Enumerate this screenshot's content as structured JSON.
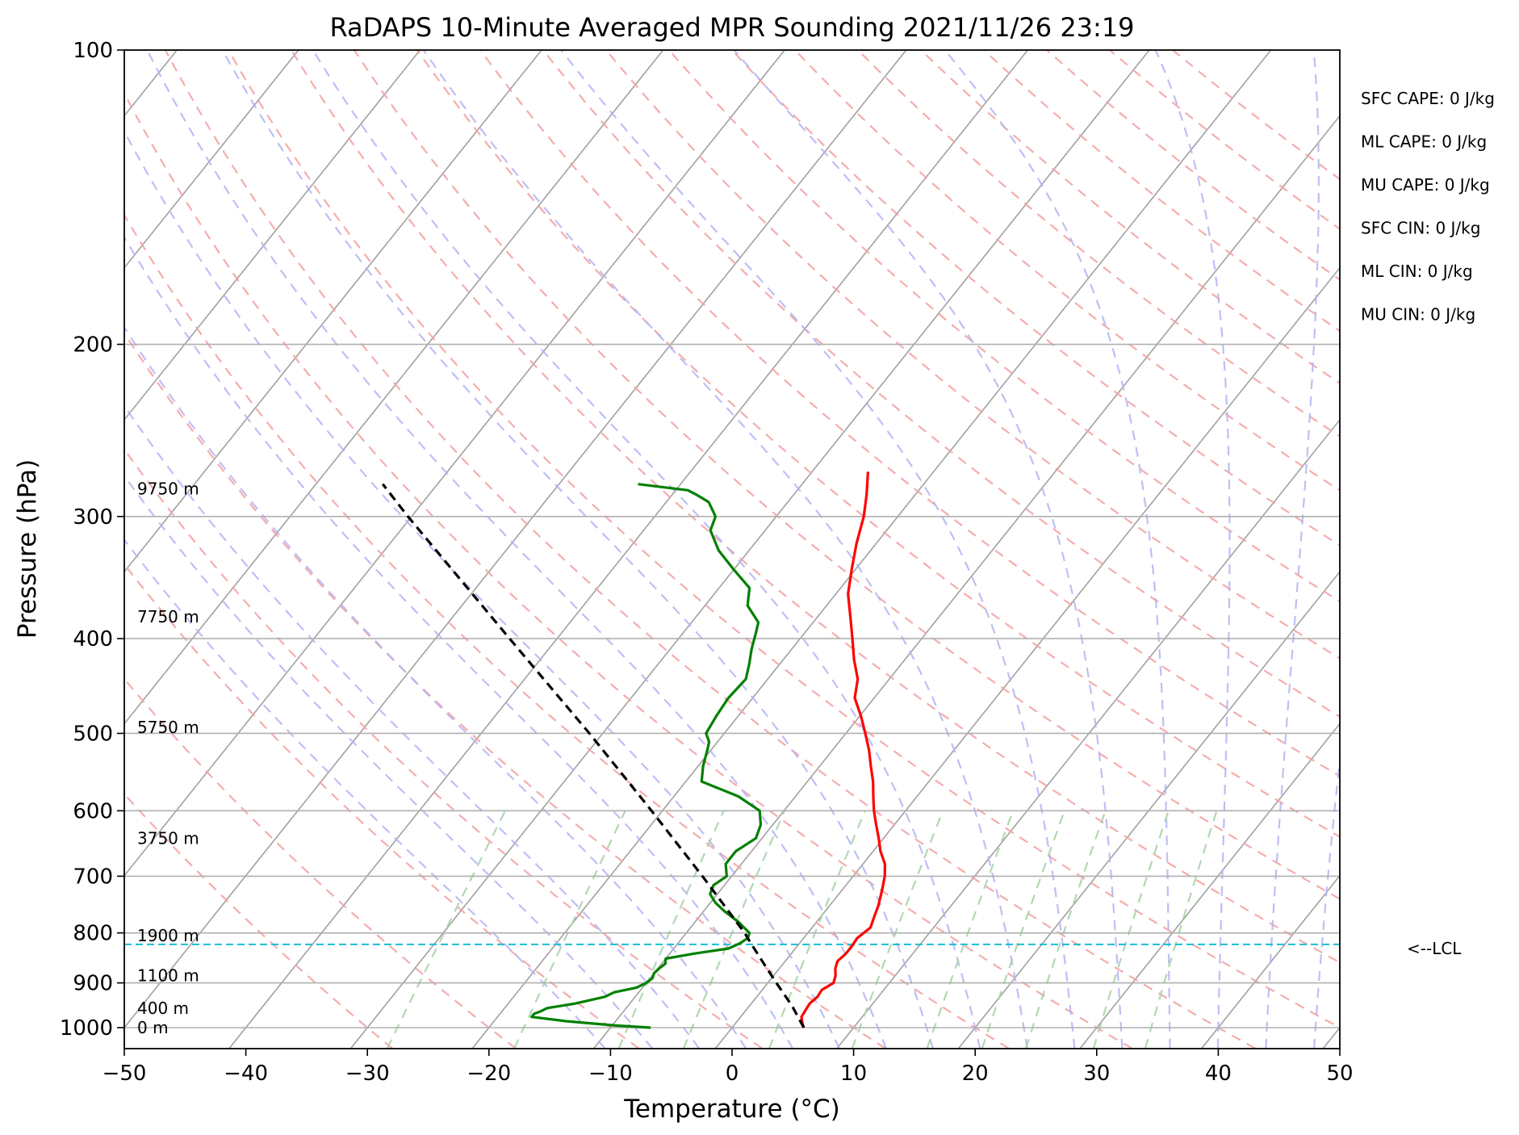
{
  "chart_data": {
    "type": "line",
    "title": "RaDAPS 10-Minute Averaged MPR Sounding 2021/11/26 23:19",
    "xlabel": "Temperature (°C)",
    "ylabel": "Pressure (hPa)",
    "xlim": [
      -50,
      50
    ],
    "ylim": [
      1050,
      100
    ],
    "y_scale": "log",
    "x_ticks": [
      -50,
      -40,
      -30,
      -20,
      -10,
      0,
      10,
      20,
      30,
      40,
      50
    ],
    "x_tick_labels": [
      "−50",
      "−40",
      "−30",
      "−20",
      "−10",
      "0",
      "10",
      "20",
      "30",
      "40",
      "50"
    ],
    "y_ticks": [
      1000,
      900,
      800,
      700,
      600,
      500,
      400,
      300,
      200,
      100
    ],
    "y_tick_labels": [
      "1000",
      "900",
      "800",
      "700",
      "600",
      "500",
      "400",
      "300",
      "200",
      "100"
    ],
    "grid": true,
    "reference_lines": {
      "dry_adiabats": {
        "color": "#f4a3a3",
        "style": "dashed"
      },
      "moist_adiabats": {
        "color": "#b3b3f5",
        "style": "dashed"
      },
      "mixing_ratio": {
        "color": "#a8d4a8",
        "style": "dashed"
      },
      "isotherms": {
        "color": "#a0a0a0",
        "style": "solid"
      }
    },
    "series": [
      {
        "role": "temperature",
        "color": "#ff0000",
        "points": [
          [
            1000,
            5.9
          ],
          [
            990,
            5.5
          ],
          [
            975,
            5.0
          ],
          [
            960,
            4.9
          ],
          [
            945,
            4.8
          ],
          [
            930,
            5.0
          ],
          [
            915,
            4.9
          ],
          [
            900,
            5.4
          ],
          [
            885,
            5.1
          ],
          [
            870,
            4.6
          ],
          [
            855,
            4.3
          ],
          [
            840,
            4.5
          ],
          [
            825,
            4.5
          ],
          [
            810,
            4.4
          ],
          [
            800,
            4.6
          ],
          [
            790,
            4.8
          ],
          [
            770,
            4.4
          ],
          [
            750,
            4.0
          ],
          [
            720,
            3.2
          ],
          [
            700,
            2.6
          ],
          [
            680,
            1.8
          ],
          [
            660,
            0.6
          ],
          [
            640,
            -0.4
          ],
          [
            620,
            -1.5
          ],
          [
            600,
            -2.6
          ],
          [
            580,
            -3.6
          ],
          [
            560,
            -4.6
          ],
          [
            540,
            -5.8
          ],
          [
            520,
            -7.0
          ],
          [
            500,
            -8.4
          ],
          [
            480,
            -9.9
          ],
          [
            460,
            -11.6
          ],
          [
            440,
            -12.6
          ],
          [
            420,
            -14.2
          ],
          [
            400,
            -15.7
          ],
          [
            380,
            -17.3
          ],
          [
            360,
            -19.0
          ],
          [
            340,
            -20.3
          ],
          [
            320,
            -21.6
          ],
          [
            300,
            -22.8
          ],
          [
            285,
            -24.0
          ],
          [
            270,
            -25.4
          ]
        ]
      },
      {
        "role": "dewpoint",
        "color": "#008000",
        "points": [
          [
            1000,
            -6.7
          ],
          [
            995,
            -9.7
          ],
          [
            985,
            -14.0
          ],
          [
            975,
            -17.2
          ],
          [
            968,
            -17.2
          ],
          [
            962,
            -16.8
          ],
          [
            955,
            -16.5
          ],
          [
            945,
            -14.5
          ],
          [
            930,
            -12.5
          ],
          [
            920,
            -12.0
          ],
          [
            910,
            -10.5
          ],
          [
            900,
            -10.0
          ],
          [
            890,
            -9.8
          ],
          [
            880,
            -10.0
          ],
          [
            870,
            -9.9
          ],
          [
            860,
            -9.7
          ],
          [
            850,
            -10.0
          ],
          [
            840,
            -8.0
          ],
          [
            830,
            -5.5
          ],
          [
            820,
            -4.9
          ],
          [
            810,
            -4.6
          ],
          [
            800,
            -4.8
          ],
          [
            790,
            -5.6
          ],
          [
            780,
            -6.4
          ],
          [
            760,
            -8.3
          ],
          [
            745,
            -9.6
          ],
          [
            730,
            -10.6
          ],
          [
            715,
            -10.9
          ],
          [
            700,
            -10.4
          ],
          [
            680,
            -11.3
          ],
          [
            660,
            -11.3
          ],
          [
            640,
            -10.5
          ],
          [
            620,
            -11.0
          ],
          [
            600,
            -12.0
          ],
          [
            580,
            -14.7
          ],
          [
            560,
            -18.7
          ],
          [
            540,
            -19.6
          ],
          [
            520,
            -20.3
          ],
          [
            510,
            -20.7
          ],
          [
            500,
            -21.5
          ],
          [
            480,
            -21.8
          ],
          [
            460,
            -22.0
          ],
          [
            440,
            -21.8
          ],
          [
            425,
            -22.5
          ],
          [
            410,
            -23.3
          ],
          [
            395,
            -24.0
          ],
          [
            385,
            -24.5
          ],
          [
            370,
            -26.5
          ],
          [
            355,
            -27.5
          ],
          [
            340,
            -30.0
          ],
          [
            325,
            -32.5
          ],
          [
            310,
            -34.5
          ],
          [
            300,
            -35.0
          ],
          [
            290,
            -36.5
          ],
          [
            285,
            -38.0
          ],
          [
            282,
            -39.0
          ],
          [
            278,
            -43.5
          ]
        ]
      },
      {
        "role": "parcel",
        "color": "#000000",
        "style": "dashed",
        "points": [
          [
            1000,
            5.9
          ],
          [
            950,
            3.5
          ],
          [
            900,
            0.7
          ],
          [
            860,
            -1.6
          ],
          [
            820,
            -4.0
          ],
          [
            800,
            -5.2
          ],
          [
            700,
            -12.4
          ],
          [
            600,
            -20.9
          ],
          [
            500,
            -31.1
          ],
          [
            400,
            -43.9
          ],
          [
            300,
            -60.3
          ],
          [
            278,
            -64.5
          ]
        ]
      }
    ],
    "lcl": {
      "pressure": 822,
      "label": "<--LCL",
      "color": "#17becf"
    },
    "height_labels": [
      {
        "pressure": 1000,
        "label": "0 m"
      },
      {
        "pressure": 955,
        "label": "400 m"
      },
      {
        "pressure": 885,
        "label": "1100 m"
      },
      {
        "pressure": 805,
        "label": "1900 m"
      },
      {
        "pressure": 640,
        "label": "3750 m"
      },
      {
        "pressure": 493,
        "label": "5750 m"
      },
      {
        "pressure": 380,
        "label": "7750 m"
      },
      {
        "pressure": 281,
        "label": "9750 m"
      }
    ],
    "indices": [
      "SFC CAPE: 0 J/kg",
      "ML CAPE: 0 J/kg",
      "MU CAPE: 0 J/kg",
      "SFC CIN: 0 J/kg",
      "ML CIN: 0 J/kg",
      "MU CIN: 0 J/kg"
    ]
  }
}
